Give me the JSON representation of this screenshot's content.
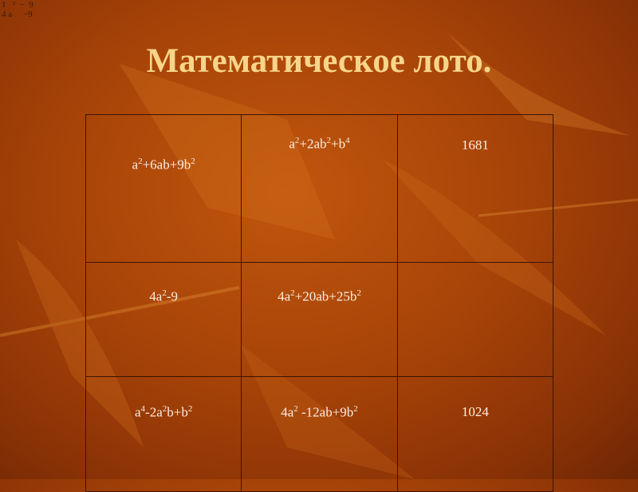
{
  "corner_formula": {
    "line1": "1   ²  −  9",
    "line2": "4 a     −9"
  },
  "title": "Математическое лото.",
  "colors": {
    "title": "#f6d58a",
    "cell_text": "#fbeee0",
    "grid": "#3b1404",
    "background": "#a84408"
  },
  "table": [
    [
      [
        [
          "a",
          "2"
        ],
        [
          "+6ab+9b",
          "2"
        ]
      ],
      [
        [
          "a",
          "2"
        ],
        [
          "+2ab",
          "2"
        ],
        [
          "+b",
          "4"
        ]
      ],
      [
        [
          "1681",
          ""
        ]
      ]
    ],
    [
      [
        [
          "4a",
          "2"
        ],
        [
          "-9",
          ""
        ]
      ],
      [
        [
          "4a",
          "2"
        ],
        [
          "+20ab+25b",
          "2"
        ]
      ],
      []
    ],
    [
      [
        [
          "a",
          "4"
        ],
        [
          "-2a",
          "2"
        ],
        [
          "b+b",
          "2"
        ]
      ],
      [
        [
          "4a",
          "2"
        ],
        [
          " -12ab+9b",
          "2"
        ]
      ],
      [
        [
          "1024",
          ""
        ]
      ]
    ]
  ]
}
